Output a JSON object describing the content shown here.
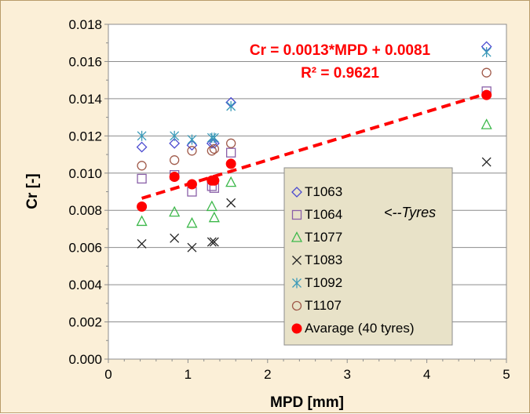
{
  "chart_data": {
    "type": "scatter",
    "xlabel": "MPD [mm]",
    "ylabel": "Cr [-]",
    "xlim": [
      0,
      5
    ],
    "ylim": [
      0,
      0.018
    ],
    "x_ticks": [
      "0",
      "1",
      "2",
      "3",
      "4",
      "5"
    ],
    "y_ticks": [
      "0.000",
      "0.002",
      "0.004",
      "0.006",
      "0.008",
      "0.010",
      "0.012",
      "0.014",
      "0.016",
      "0.018"
    ],
    "grid": "horizontal major",
    "legend_position": "bottom-right inside plot",
    "x": [
      0.42,
      0.83,
      1.05,
      1.3,
      1.33,
      1.54,
      4.75
    ],
    "series": [
      {
        "name": "T1063",
        "marker": "diamond",
        "color": "#4a4ad0",
        "values": [
          0.0114,
          0.0116,
          0.0115,
          0.0116,
          0.0116,
          0.0138,
          0.0168
        ]
      },
      {
        "name": "T1064",
        "marker": "square",
        "color": "#8a60a8",
        "values": [
          0.0097,
          0.0099,
          0.009,
          0.0093,
          0.0092,
          0.0111,
          0.0144
        ]
      },
      {
        "name": "T1077",
        "marker": "triangle",
        "color": "#3cb84a",
        "values": [
          0.0074,
          0.0079,
          0.0073,
          0.0082,
          0.0076,
          0.0095,
          0.0126
        ]
      },
      {
        "name": "T1083",
        "marker": "x",
        "color": "#222222",
        "values": [
          0.0062,
          0.0065,
          0.006,
          0.0063,
          0.0063,
          0.0084,
          0.0106
        ]
      },
      {
        "name": "T1092",
        "marker": "asterisk",
        "color": "#3a9ab8",
        "values": [
          0.012,
          0.012,
          0.0118,
          0.0119,
          0.0119,
          0.0136,
          0.0165
        ]
      },
      {
        "name": "T1107",
        "marker": "circle-open",
        "color": "#a05a4a",
        "values": [
          0.0104,
          0.0107,
          0.0112,
          0.0112,
          0.0113,
          0.0116,
          0.0154
        ]
      },
      {
        "name": "Avarage (40 tyres)",
        "marker": "circle-filled",
        "color": "#ff0000",
        "values": [
          0.0082,
          0.0098,
          0.0094,
          0.0096,
          0.0096,
          0.0105,
          0.0142
        ]
      }
    ],
    "trendline": {
      "slope": 0.0013,
      "intercept": 0.0081,
      "x_range": [
        0.42,
        4.75
      ],
      "color": "#ff0000",
      "style": "dashed",
      "equation": "Cr = 0.0013*MPD + 0.0081",
      "r2_label": "R² = 0.9621"
    },
    "legend_note": "<--Tyres"
  }
}
